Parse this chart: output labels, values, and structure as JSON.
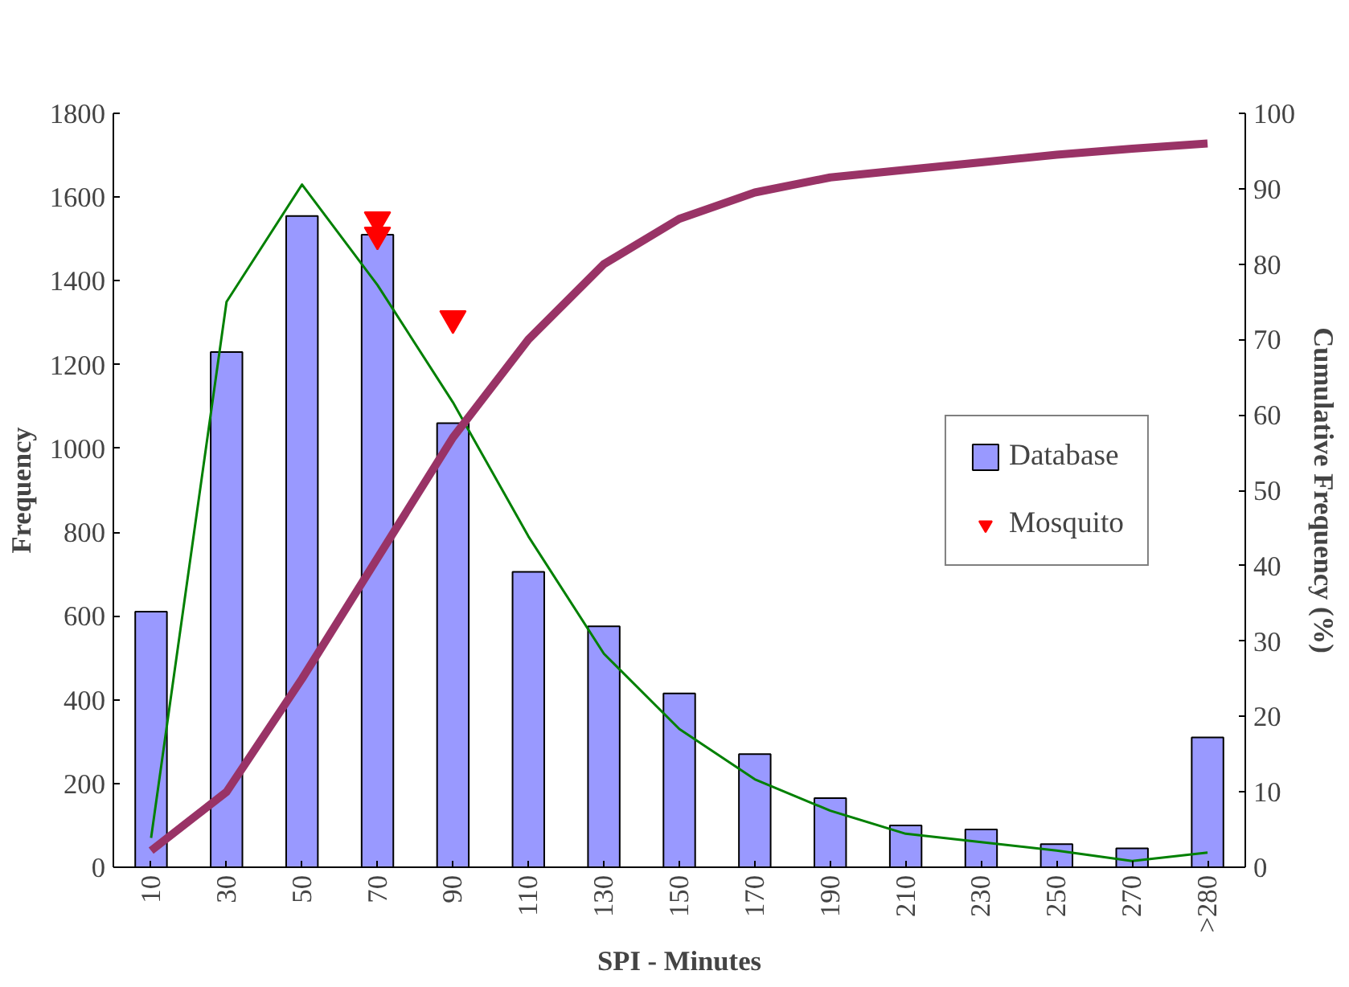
{
  "chart_data": {
    "type": "bar",
    "xlabel": "SPI - Minutes",
    "ylabel": "Frequency",
    "y2label": "Cumulative Frequency (%)",
    "categories": [
      "10",
      "30",
      "50",
      "70",
      "90",
      "110",
      "130",
      "150",
      "170",
      "190",
      "210",
      "230",
      "250",
      "270",
      ">280"
    ],
    "ylim": [
      0,
      1800
    ],
    "yticks": [
      0,
      200,
      400,
      600,
      800,
      1000,
      1200,
      1400,
      1600,
      1800
    ],
    "y2lim": [
      0,
      100
    ],
    "y2ticks": [
      0,
      10,
      20,
      30,
      40,
      50,
      60,
      70,
      80,
      90,
      100
    ],
    "grid": false,
    "legend": "right",
    "series": [
      {
        "name": "Database",
        "color": "#9999ff",
        "values": [
          610,
          1230,
          1555,
          1510,
          1060,
          705,
          575,
          415,
          270,
          165,
          100,
          90,
          55,
          45,
          310
        ]
      },
      {
        "type": "line",
        "color": "#008000",
        "values": [
          70,
          1350,
          1630,
          1390,
          1110,
          790,
          510,
          330,
          210,
          135,
          80,
          60,
          40,
          15,
          35
        ]
      },
      {
        "type": "line",
        "axis": "y2",
        "color": "#993366",
        "values": [
          2.2,
          10,
          25,
          41,
          57,
          70,
          80,
          86,
          89.5,
          91.5,
          92.5,
          93.5,
          94.5,
          95.3,
          96
        ]
      },
      {
        "name": "Mosquito",
        "type": "scatter",
        "marker": "triangle",
        "color": "#ff0000",
        "values": [
          null,
          null,
          null,
          1546,
          1310,
          null,
          null,
          null,
          null,
          null,
          null,
          null,
          null,
          null,
          null
        ]
      },
      {
        "type": "scatter",
        "marker": "triangle",
        "color": "#ff0000",
        "values": [
          null,
          null,
          null,
          1510,
          null,
          null,
          null,
          null,
          null,
          null,
          null,
          null,
          null,
          null,
          null
        ]
      }
    ]
  }
}
